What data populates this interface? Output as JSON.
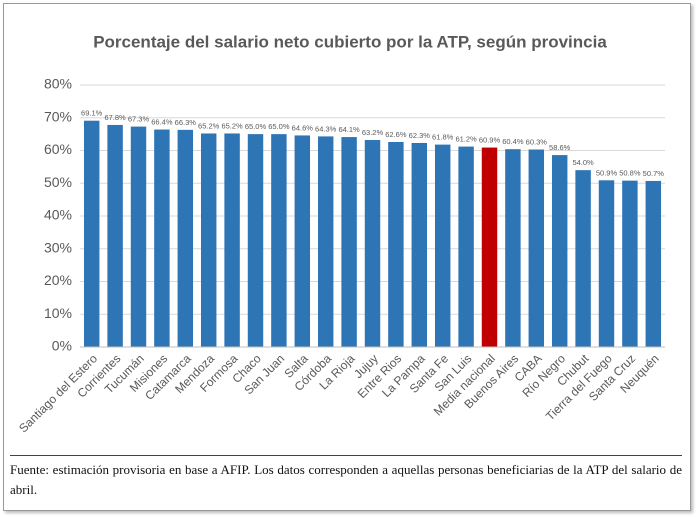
{
  "chart_data": {
    "type": "bar",
    "title": "Porcentaje del salario neto cubierto por la ATP, según provincia",
    "categories": [
      "Santiago del Estero",
      "Corrientes",
      "Tucumán",
      "Misiones",
      "Catamarca",
      "Mendoza",
      "Formosa",
      "Chaco",
      "San Juan",
      "Salta",
      "Córdoba",
      "La Rioja",
      "Jujuy",
      "Entre Rios",
      "La Pampa",
      "Santa Fe",
      "San Luis",
      "Media nacional",
      "Buenos Aires",
      "CABA",
      "Río Negro",
      "Chubut",
      "Tierra del Fuego",
      "Santa Cruz",
      "Neuquén"
    ],
    "values": [
      69.1,
      67.8,
      67.3,
      66.4,
      66.3,
      65.2,
      65.2,
      65.0,
      65.0,
      64.6,
      64.3,
      64.1,
      63.2,
      62.6,
      62.3,
      61.8,
      61.2,
      60.9,
      60.4,
      60.3,
      58.6,
      54.0,
      50.9,
      50.8,
      50.7
    ],
    "value_labels": [
      "69.1%",
      "67.8%",
      "67.3%",
      "66.4%",
      "66.3%",
      "65.2%",
      "65.2%",
      "65.0%",
      "65.0%",
      "64.6%",
      "64.3%",
      "64.1%",
      "63.2%",
      "62.6%",
      "62.3%",
      "61.8%",
      "61.2%",
      "60.9%",
      "60.4%",
      "60.3%",
      "58.6%",
      "54.0%",
      "50.9%",
      "50.8%",
      "50.7%"
    ],
    "colors": [
      "#2e75b6",
      "#2e75b6",
      "#2e75b6",
      "#2e75b6",
      "#2e75b6",
      "#2e75b6",
      "#2e75b6",
      "#2e75b6",
      "#2e75b6",
      "#2e75b6",
      "#2e75b6",
      "#2e75b6",
      "#2e75b6",
      "#2e75b6",
      "#2e75b6",
      "#2e75b6",
      "#2e75b6",
      "#c00000",
      "#2e75b6",
      "#2e75b6",
      "#2e75b6",
      "#2e75b6",
      "#2e75b6",
      "#2e75b6",
      "#2e75b6"
    ],
    "ylim": [
      0,
      80
    ],
    "yticks": [
      {
        "value": 0,
        "label": "0%"
      },
      {
        "value": 10,
        "label": "10%"
      },
      {
        "value": 20,
        "label": "20%"
      },
      {
        "value": 30,
        "label": "30%"
      },
      {
        "value": 40,
        "label": "40%"
      },
      {
        "value": 50,
        "label": "50%"
      },
      {
        "value": 60,
        "label": "60%"
      },
      {
        "value": 70,
        "label": "70%"
      },
      {
        "value": 80,
        "label": "80%"
      }
    ],
    "grid": true,
    "source": "Fuente: estimación provisoria en base a AFIP. Los datos corresponden a aquellas personas beneficiarias de la ATP del salario de abril."
  }
}
